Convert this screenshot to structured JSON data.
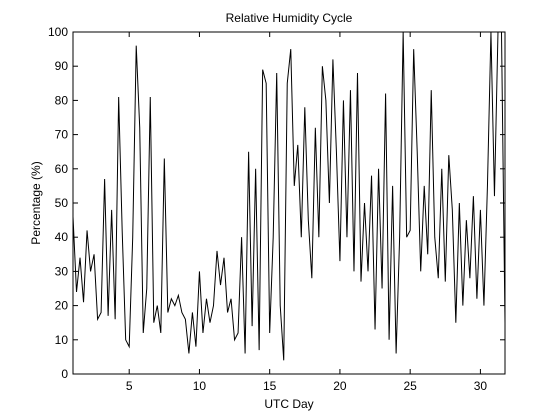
{
  "chart_data": {
    "type": "line",
    "title": "Relative Humidity Cycle",
    "x_label": "UTC Day",
    "y_label": "Percentage (%)",
    "x": [
      1,
      1.25,
      1.5,
      1.75,
      2,
      2.25,
      2.5,
      2.75,
      3,
      3.25,
      3.5,
      3.75,
      4,
      4.25,
      4.5,
      4.75,
      5,
      5.25,
      5.5,
      5.75,
      6,
      6.25,
      6.5,
      6.75,
      7,
      7.25,
      7.5,
      7.75,
      8,
      8.25,
      8.5,
      8.75,
      9,
      9.25,
      9.5,
      9.75,
      10,
      10.25,
      10.5,
      10.75,
      11,
      11.25,
      11.5,
      11.75,
      12,
      12.25,
      12.5,
      12.75,
      13,
      13.25,
      13.5,
      13.75,
      14,
      14.25,
      14.5,
      14.75,
      15,
      15.25,
      15.5,
      15.75,
      16,
      16.25,
      16.5,
      16.75,
      17,
      17.25,
      17.5,
      17.75,
      18,
      18.25,
      18.5,
      18.75,
      19,
      19.25,
      19.5,
      19.75,
      20,
      20.25,
      20.5,
      20.75,
      21,
      21.25,
      21.5,
      21.75,
      22,
      22.25,
      22.5,
      22.75,
      23,
      23.25,
      23.5,
      23.75,
      24,
      24.25,
      24.5,
      24.75,
      25,
      25.25,
      25.5,
      25.75,
      26,
      26.25,
      26.5,
      26.75,
      27,
      27.25,
      27.5,
      27.75,
      28,
      28.25,
      28.5,
      28.75,
      29,
      29.25,
      29.5,
      29.75,
      30,
      30.25,
      30.5,
      30.75,
      31,
      31.25,
      31.5,
      31.75
    ],
    "series": [
      {
        "color": "#000000",
        "values": [
          46,
          24,
          34,
          21,
          42,
          30,
          35,
          16,
          18,
          57,
          17,
          48,
          16,
          81,
          42,
          10,
          8,
          40,
          96,
          72,
          12,
          25,
          81,
          15,
          20,
          12,
          63,
          18,
          22,
          20,
          23,
          18,
          16,
          6,
          18,
          8,
          30,
          12,
          22,
          15,
          20,
          36,
          26,
          34,
          18,
          22,
          10,
          12,
          40,
          6,
          65,
          14,
          60,
          7,
          89,
          85,
          12,
          40,
          88,
          20,
          4,
          85,
          95,
          55,
          67,
          40,
          78,
          45,
          28,
          72,
          40,
          90,
          80,
          50,
          92,
          65,
          33,
          80,
          40,
          83,
          30,
          88,
          27,
          50,
          30,
          58,
          13,
          60,
          25,
          82,
          10,
          55,
          6,
          40,
          100,
          40,
          42,
          95,
          65,
          30,
          55,
          35,
          83,
          40,
          28,
          60,
          27,
          64,
          48,
          15,
          50,
          20,
          45,
          28,
          52,
          22,
          48,
          20,
          55,
          100,
          52,
          100,
          100,
          15
        ]
      }
    ],
    "xlim": [
      1,
      31.75
    ],
    "ylim": [
      0,
      100
    ],
    "xticks": [
      5,
      10,
      15,
      20,
      25,
      30
    ],
    "yticks": [
      0,
      10,
      20,
      30,
      40,
      50,
      60,
      70,
      80,
      90,
      100
    ]
  }
}
